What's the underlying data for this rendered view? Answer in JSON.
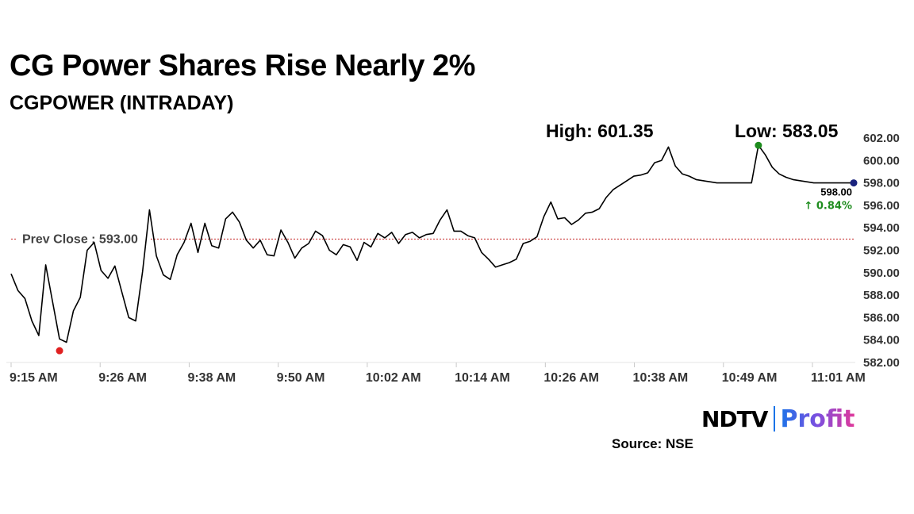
{
  "header": {
    "title": "CG Power Shares Rise Nearly 2%",
    "subtitle": "CGPOWER (INTRADAY)",
    "high_text": "High: 601.35",
    "low_text": "Low: 583.05"
  },
  "footer": {
    "logo_ndtv": "NDTV",
    "logo_profit": "Profit",
    "source": "Source: NSE"
  },
  "colors": {
    "line": "#000000",
    "prev_close_line": "#c62828",
    "high_marker": "#1e8c1e",
    "low_marker": "#e02020",
    "last_marker": "#1a237e",
    "change_text": "#1e8c1e"
  },
  "chart_data": {
    "type": "line",
    "title": "CGPOWER (INTRADAY)",
    "xlabel": "",
    "ylabel": "",
    "ylim": [
      582,
      602
    ],
    "yticks": [
      "582.00",
      "584.00",
      "586.00",
      "588.00",
      "590.00",
      "592.00",
      "594.00",
      "596.00",
      "598.00",
      "600.00",
      "602.00"
    ],
    "xticks": [
      "9:15 AM",
      "9:26 AM",
      "9:38 AM",
      "9:50 AM",
      "10:02 AM",
      "10:14 AM",
      "10:26 AM",
      "10:38 AM",
      "10:49 AM",
      "11:01 AM"
    ],
    "session_minutes": [
      0,
      122
    ],
    "prev_close": 593.0,
    "prev_close_label": "Prev Close : 593.00",
    "last_price": 598.0,
    "last_label": "598.00",
    "change_label": "↑ 0.84%",
    "high": {
      "minute": 108,
      "price": 601.35
    },
    "low": {
      "minute": 7,
      "price": 583.05
    },
    "series": [
      {
        "name": "CGPOWER",
        "x": [
          0,
          1,
          2,
          3,
          4,
          5,
          6,
          7,
          8,
          9,
          10,
          11,
          12,
          13,
          14,
          15,
          16,
          17,
          18,
          19,
          20,
          21,
          22,
          23,
          24,
          25,
          26,
          27,
          28,
          29,
          30,
          31,
          32,
          33,
          34,
          35,
          36,
          37,
          38,
          39,
          40,
          41,
          42,
          43,
          44,
          45,
          46,
          47,
          48,
          49,
          50,
          51,
          52,
          53,
          54,
          55,
          56,
          57,
          58,
          59,
          60,
          61,
          62,
          63,
          64,
          65,
          66,
          67,
          68,
          69,
          70,
          71,
          72,
          73,
          74,
          75,
          76,
          77,
          78,
          79,
          80,
          81,
          82,
          83,
          84,
          85,
          86,
          87,
          88,
          89,
          90,
          91,
          92,
          93,
          94,
          95,
          96,
          97,
          98,
          99,
          100,
          101,
          102,
          103,
          104,
          105,
          106,
          107,
          108,
          109,
          110,
          111,
          112,
          113,
          114,
          115,
          116,
          117,
          118,
          119,
          120,
          121,
          122
        ],
        "values": [
          589.9,
          588.4,
          587.7,
          585.7,
          584.4,
          590.7,
          587.4,
          584.1,
          583.8,
          586.6,
          587.8,
          592.0,
          592.7,
          590.2,
          589.5,
          590.6,
          588.3,
          586.0,
          585.7,
          590.1,
          595.6,
          591.5,
          589.8,
          589.4,
          591.6,
          592.7,
          594.4,
          591.8,
          594.4,
          592.4,
          592.2,
          594.8,
          595.4,
          594.5,
          592.9,
          592.2,
          592.9,
          591.6,
          591.5,
          593.8,
          592.7,
          591.3,
          592.2,
          592.6,
          593.7,
          593.3,
          592.0,
          591.6,
          592.5,
          592.3,
          591.1,
          592.7,
          592.3,
          593.5,
          593.1,
          593.6,
          592.6,
          593.4,
          593.6,
          593.1,
          593.4,
          593.5,
          594.7,
          595.6,
          593.7,
          593.7,
          593.3,
          593.1,
          591.8,
          591.2,
          590.5,
          590.7,
          590.9,
          591.2,
          592.6,
          592.8,
          593.2,
          595.0,
          596.3,
          594.8,
          594.9,
          594.3,
          594.7,
          595.3,
          595.4,
          595.7,
          596.7,
          597.4,
          597.8,
          598.2,
          598.6,
          598.7,
          598.9,
          599.8,
          600.0,
          601.2,
          599.5,
          598.8,
          598.6,
          598.3,
          598.2,
          598.1,
          598.0,
          598.0,
          598.0,
          598.0,
          598.0,
          598.0,
          601.35,
          600.5,
          599.4,
          598.8,
          598.5,
          598.3,
          598.2,
          598.1,
          598.0,
          598.0,
          598.0,
          598.0,
          598.0,
          598.0,
          598.0
        ]
      }
    ]
  }
}
